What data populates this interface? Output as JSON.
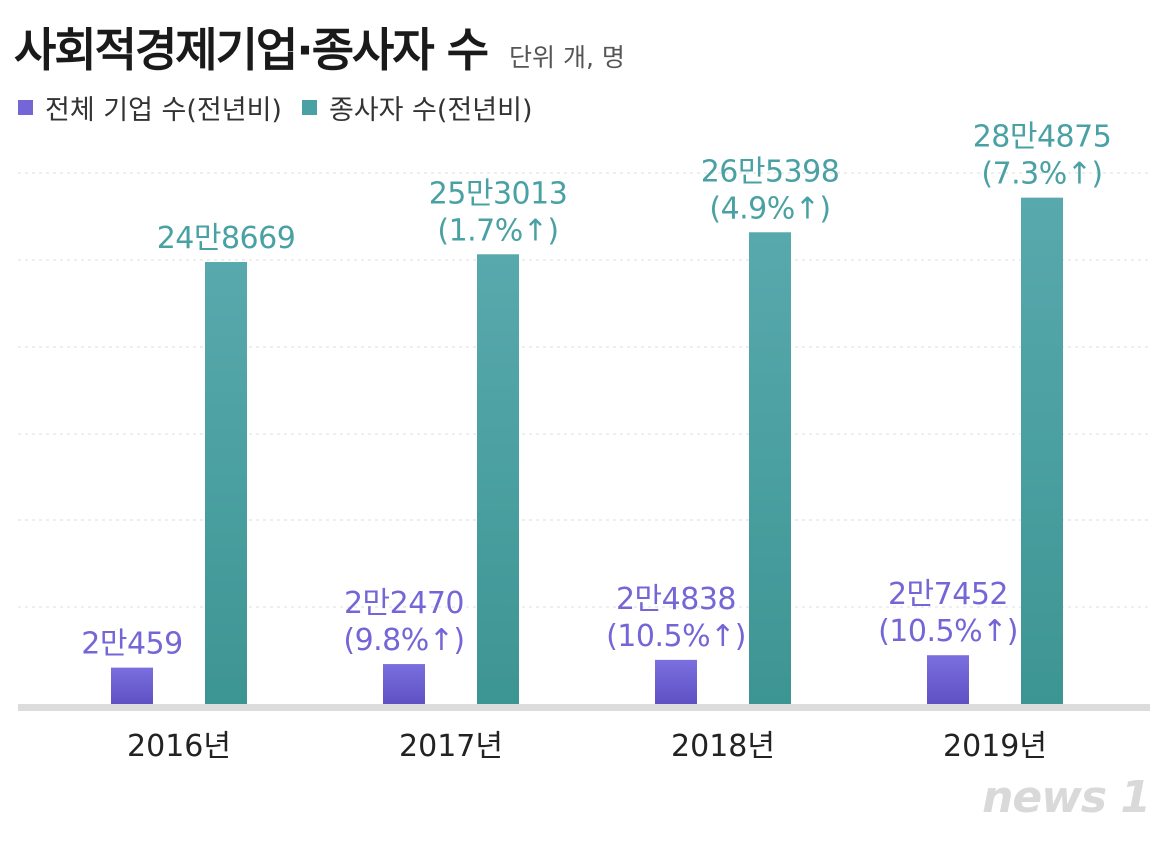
{
  "header": {
    "title": "사회적경제기업·종사자 수",
    "unit": "단위  개, 명"
  },
  "legend": [
    {
      "label": "전체 기업 수(전년비)",
      "color": "#7466d6"
    },
    {
      "label": "종사자 수(전년비)",
      "color": "#4aa1a4"
    }
  ],
  "watermark": "news 1",
  "chart_data": {
    "type": "bar",
    "categories": [
      "2016년",
      "2017년",
      "2018년",
      "2019년"
    ],
    "series": [
      {
        "name": "전체 기업 수(전년비)",
        "color": "#7466d6",
        "values": [
          20459,
          22470,
          24838,
          27452
        ],
        "labels": [
          [
            "2만459"
          ],
          [
            "2만2470",
            "(9.8%↑)"
          ],
          [
            "2만4838",
            "(10.5%↑)"
          ],
          [
            "2만7452",
            "(10.5%↑)"
          ]
        ]
      },
      {
        "name": "종사자 수(전년비)",
        "color": "#4aa1a4",
        "values": [
          248669,
          253013,
          265398,
          284875
        ],
        "labels": [
          [
            "24만8669"
          ],
          [
            "25만3013",
            "(1.7%↑)"
          ],
          [
            "26만5398",
            "(4.9%↑)"
          ],
          [
            "28만4875",
            "(7.3%↑)"
          ]
        ]
      }
    ],
    "grid": true,
    "legend_position": "top-left"
  }
}
